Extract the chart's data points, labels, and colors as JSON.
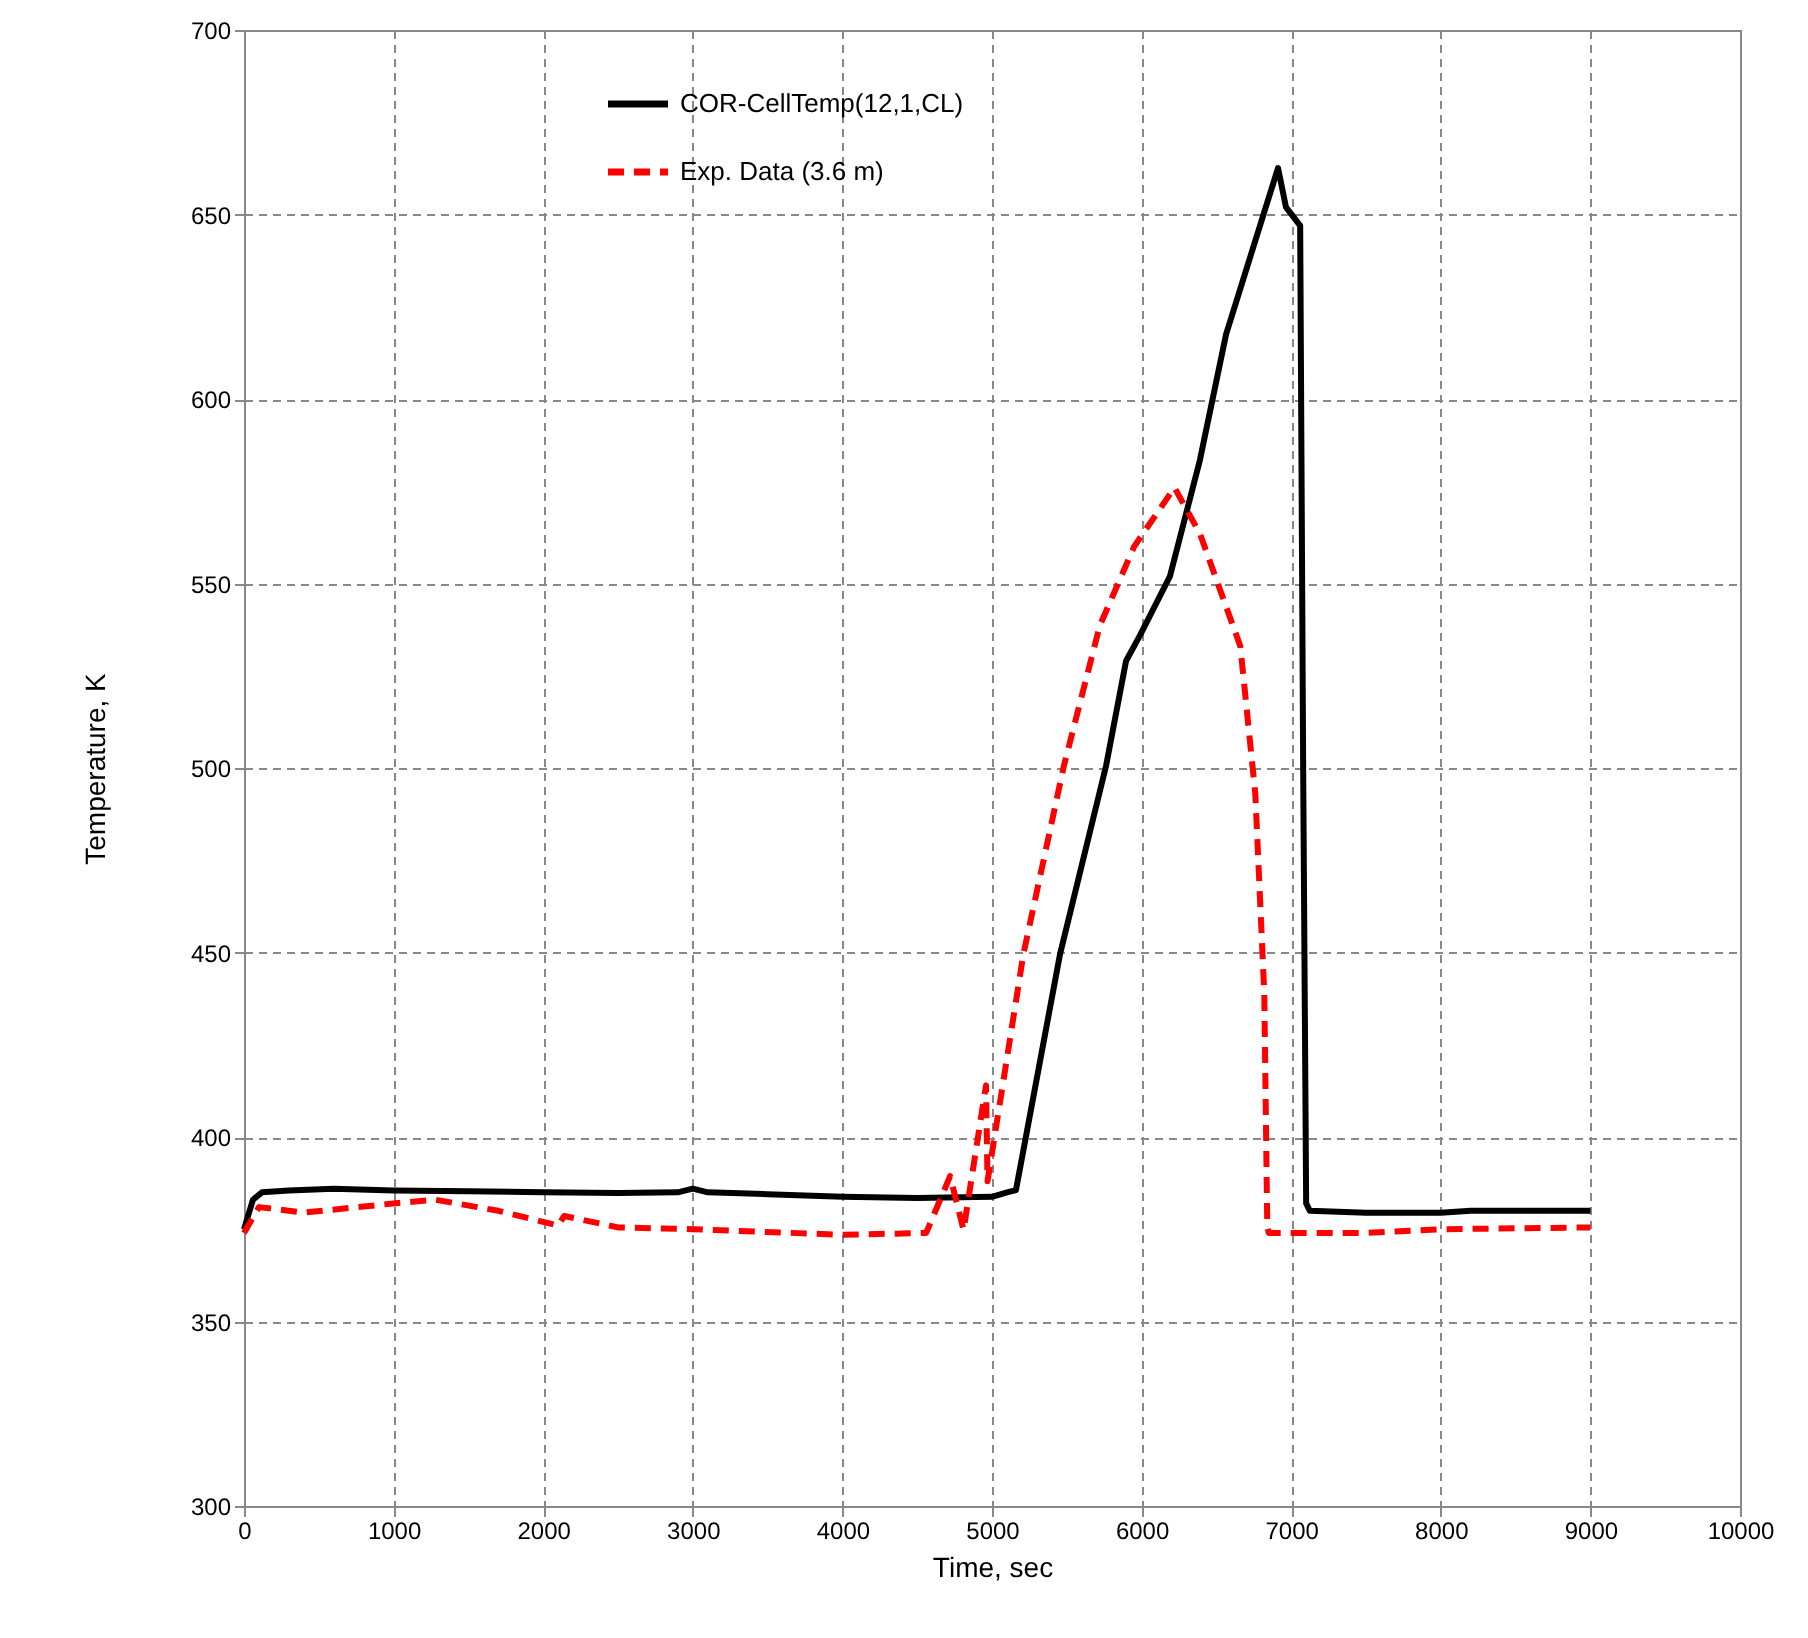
{
  "chart_data": {
    "type": "line",
    "xlabel": "Time, sec",
    "ylabel": "Temperature, K",
    "xlim": [
      0,
      10000
    ],
    "ylim": [
      300,
      700
    ],
    "xticks": [
      0,
      1000,
      2000,
      3000,
      4000,
      5000,
      6000,
      7000,
      8000,
      9000,
      10000
    ],
    "yticks": [
      300,
      350,
      400,
      450,
      500,
      550,
      600,
      650,
      700
    ],
    "grid": true,
    "legend": "top",
    "marker": "none",
    "series": [
      {
        "name": "COR-CellTemp(12,1,CL)",
        "color": "#000000",
        "line_style": "solid",
        "x": [
          0,
          60,
          120,
          300,
          600,
          1000,
          1500,
          2000,
          2500,
          2900,
          3000,
          3100,
          3500,
          4000,
          4500,
          5000,
          5100,
          5160,
          5455,
          5762,
          5896,
          5990,
          6190,
          6390,
          6565,
          6912,
          6965,
          7060,
          7080,
          7100,
          7125,
          7500,
          8000,
          8200,
          8600,
          9000
        ],
        "values": [
          375,
          383,
          385,
          385.5,
          386,
          385.5,
          385.3,
          385,
          384.8,
          385,
          386,
          385,
          384.5,
          383.8,
          383.5,
          383.8,
          385,
          385.6,
          449.6,
          500.5,
          529,
          536,
          552,
          583.5,
          617.6,
          662.6,
          652,
          647,
          500,
          382,
          380,
          379.5,
          379.5,
          380,
          380,
          380
        ]
      },
      {
        "name": "Exp. Data (3.6 m)",
        "color": "#ff0000",
        "line_style": "dashed",
        "x": [
          0,
          100,
          400,
          1000,
          1280,
          1700,
          2100,
          2140,
          2500,
          3000,
          4000,
          4560,
          4720,
          4810,
          4960,
          4970,
          5210,
          5480,
          5720,
          5950,
          6220,
          6390,
          6660,
          6760,
          6820,
          6840,
          6850,
          7500,
          8000,
          9000
        ],
        "values": [
          374,
          381,
          379.5,
          382,
          383,
          380,
          376,
          378.6,
          375.5,
          375,
          373.5,
          374,
          389.4,
          374.8,
          414,
          388,
          449.6,
          500.5,
          538.5,
          560,
          576,
          563.5,
          533,
          493,
          439,
          376,
          374,
          374,
          375,
          375.5
        ]
      }
    ]
  }
}
